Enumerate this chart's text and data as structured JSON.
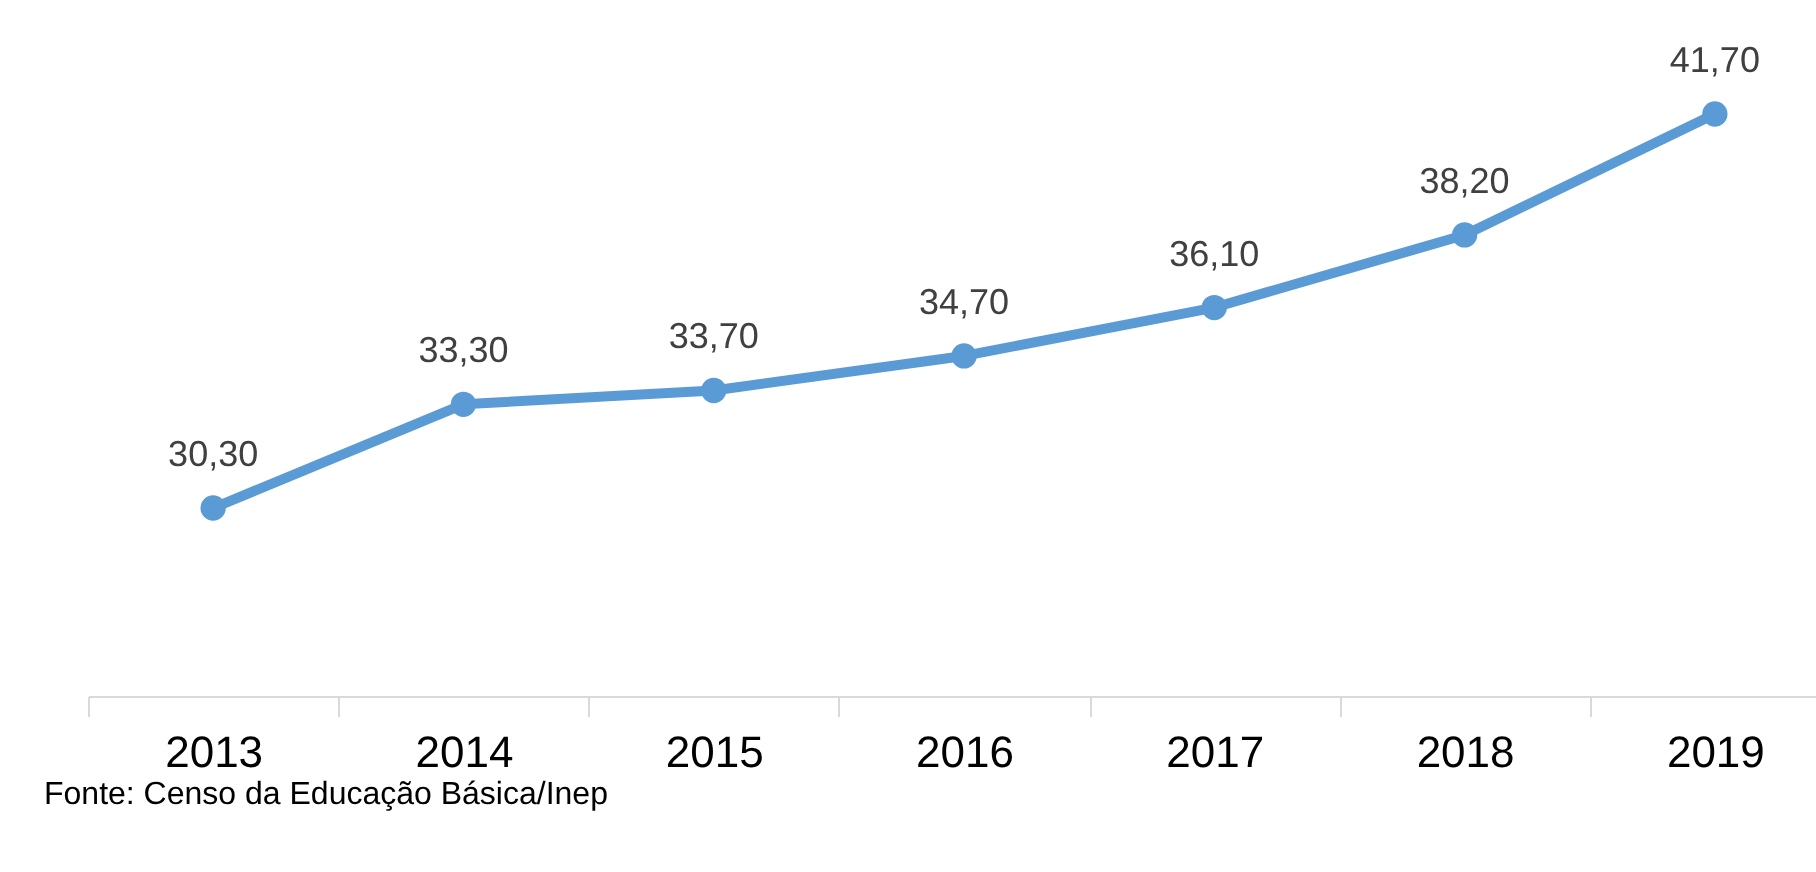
{
  "chart_data": {
    "type": "line",
    "categories": [
      "2013",
      "2014",
      "2015",
      "2016",
      "2017",
      "2018",
      "2019"
    ],
    "series": [
      {
        "color": "#5b9bd5",
        "values": [
          30.3,
          33.3,
          33.7,
          34.7,
          36.1,
          38.2,
          41.7
        ],
        "value_labels": [
          "30,30",
          "33,30",
          "33,70",
          "34,70",
          "36,10",
          "38,20",
          "41,70"
        ]
      }
    ],
    "tick_labels": "x",
    "marker": "circle",
    "line_style": "solid",
    "grid": false,
    "annotations": [
      "Fonte: Censo da Educação Básica/Inep"
    ]
  }
}
